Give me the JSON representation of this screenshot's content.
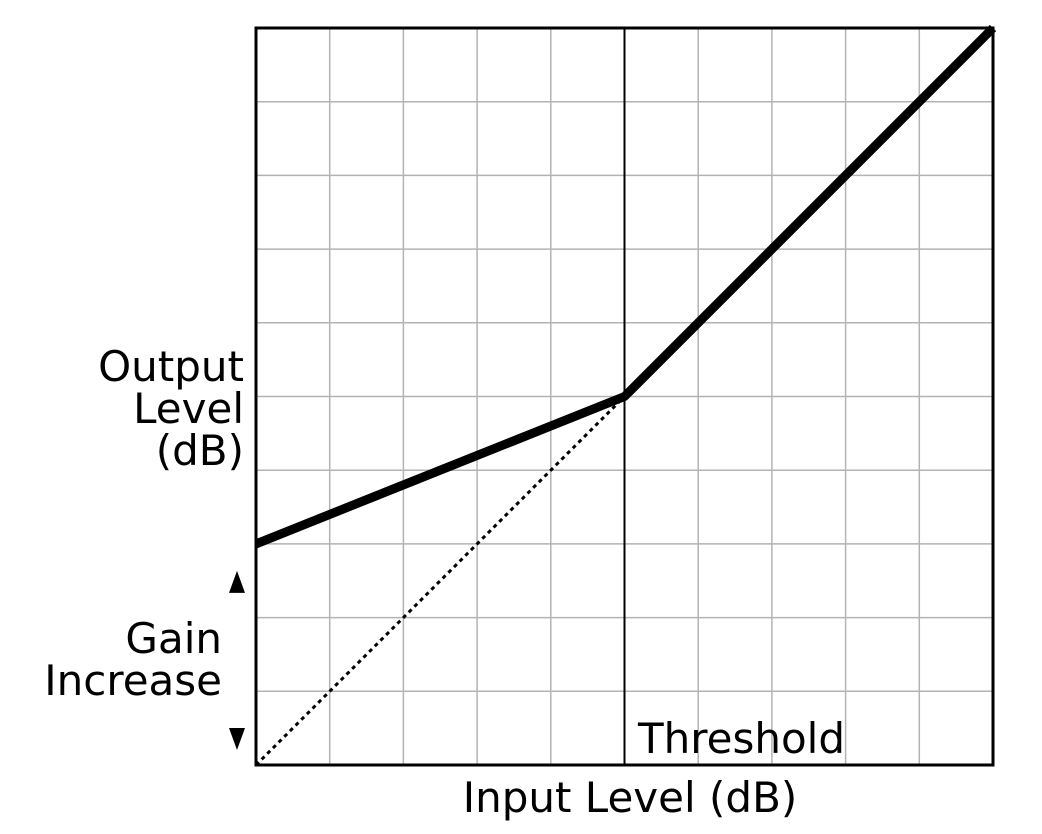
{
  "chart_data": {
    "type": "line",
    "title": "",
    "xlabel": "Input Level (dB)",
    "ylabel_lines": [
      "Output",
      "Level",
      "(dB)"
    ],
    "xlim": [
      0,
      10
    ],
    "ylim": [
      0,
      10
    ],
    "grid": true,
    "grid_divisions": 10,
    "series": [
      {
        "style": "solid",
        "points": [
          {
            "x": 0,
            "y": 3
          },
          {
            "x": 5,
            "y": 5
          },
          {
            "x": 10,
            "y": 10
          }
        ]
      },
      {
        "style": "dotted",
        "points": [
          {
            "x": 0,
            "y": 0
          },
          {
            "x": 5,
            "y": 5
          }
        ]
      }
    ],
    "threshold": {
      "x": 5,
      "label": "Threshold"
    },
    "gain_annotation": {
      "label_lines": [
        "Gain",
        "Increase"
      ],
      "from_y": 0,
      "to_y": 3
    },
    "colors": {
      "line": "#000000",
      "grid": "#b3b3b3",
      "background": "#ffffff"
    }
  }
}
